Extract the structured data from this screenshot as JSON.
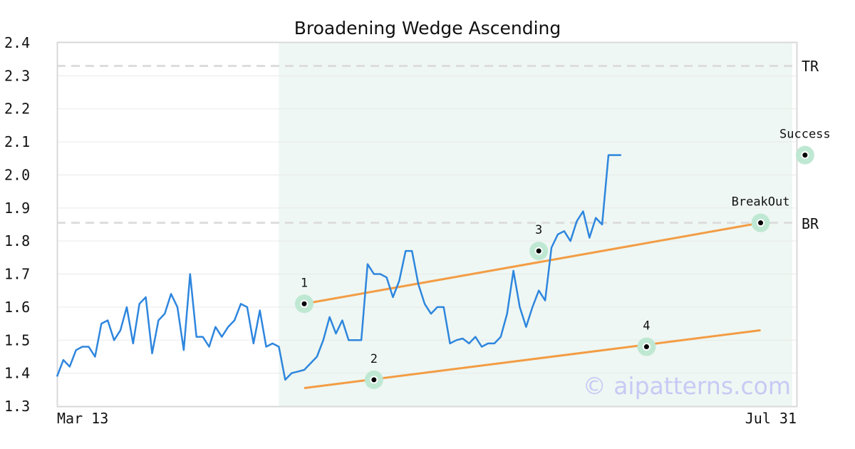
{
  "chart_data": {
    "type": "line",
    "title": "Broadening Wedge Ascending",
    "ylim": [
      1.3,
      2.4
    ],
    "yticks": [
      "1.3",
      "1.4",
      "1.5",
      "1.6",
      "1.7",
      "1.8",
      "1.9",
      "2.0",
      "2.1",
      "2.2",
      "2.3",
      "2.4"
    ],
    "x_start_label": "Mar 13",
    "x_end_label": "Jul 31",
    "grid": true,
    "price": [
      1.39,
      1.44,
      1.42,
      1.47,
      1.48,
      1.48,
      1.45,
      1.55,
      1.56,
      1.5,
      1.53,
      1.6,
      1.49,
      1.61,
      1.63,
      1.46,
      1.56,
      1.58,
      1.64,
      1.6,
      1.47,
      1.7,
      1.51,
      1.51,
      1.48,
      1.54,
      1.51,
      1.54,
      1.56,
      1.61,
      1.6,
      1.49,
      1.59,
      1.48,
      1.49,
      1.48,
      1.38,
      1.4,
      1.405,
      1.41,
      1.43,
      1.45,
      1.5,
      1.57,
      1.52,
      1.56,
      1.5,
      1.5,
      1.5,
      1.73,
      1.7,
      1.7,
      1.69,
      1.63,
      1.68,
      1.77,
      1.77,
      1.67,
      1.61,
      1.58,
      1.6,
      1.6,
      1.49,
      1.5,
      1.505,
      1.49,
      1.51,
      1.48,
      1.49,
      1.49,
      1.51,
      1.58,
      1.71,
      1.6,
      1.54,
      1.6,
      1.65,
      1.62,
      1.78,
      1.82,
      1.83,
      1.8,
      1.86,
      1.89,
      1.81,
      1.87,
      1.85,
      2.06,
      2.06,
      2.06
    ],
    "pattern_region": {
      "start_index": 35,
      "end_index": 116
    },
    "resistance_level": {
      "label": "TR",
      "value": 2.33
    },
    "support_level": {
      "label": "BR",
      "value": 1.855
    },
    "upper_trendline": {
      "from": {
        "index": 39,
        "value": 1.61
      },
      "to": {
        "index": 111,
        "value": 1.855
      }
    },
    "lower_trendline": {
      "from": {
        "index": 39,
        "value": 1.355
      },
      "to": {
        "index": 111,
        "value": 1.53
      }
    },
    "points": [
      {
        "label": "1",
        "index": 39,
        "value": 1.61
      },
      {
        "label": "2",
        "index": 50,
        "value": 1.38
      },
      {
        "label": "3",
        "index": 76,
        "value": 1.77
      },
      {
        "label": "4",
        "index": 93,
        "value": 1.48
      },
      {
        "label": "BreakOut",
        "index": 111,
        "value": 1.855
      },
      {
        "label": "Success",
        "index": 118,
        "value": 2.06
      }
    ],
    "colors": {
      "price": "#2e86de",
      "trendline": "#f39c44",
      "region": "#eef7f3",
      "marker_halo": "#bfe8d3",
      "level_line": "#dddddd",
      "grid": "#e9e9e9"
    }
  },
  "watermark": "© aipatterns.com"
}
